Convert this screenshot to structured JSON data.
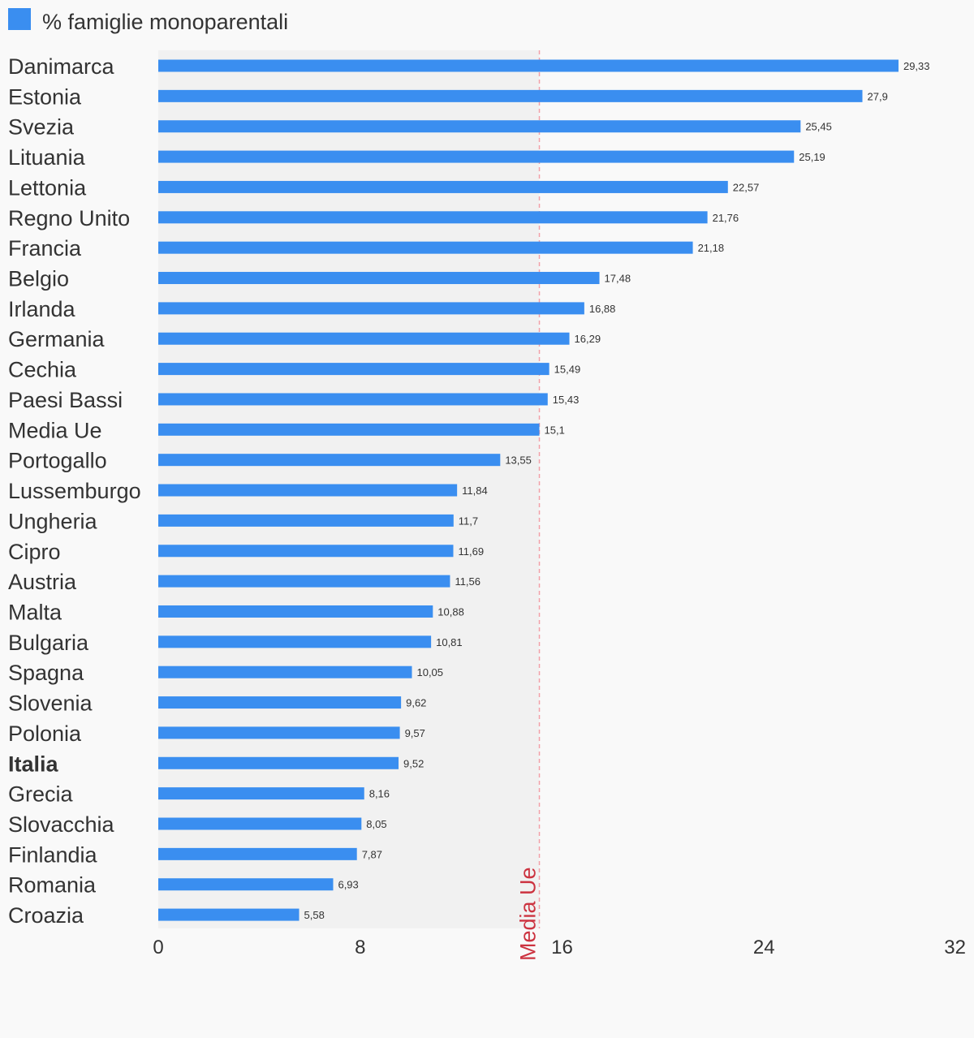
{
  "chart_data": {
    "type": "bar",
    "orientation": "horizontal",
    "legend": {
      "label": "% famiglie monoparentali",
      "placement": "top-left"
    },
    "categories": [
      "Danimarca",
      "Estonia",
      "Svezia",
      "Lituania",
      "Lettonia",
      "Regno Unito",
      "Francia",
      "Belgio",
      "Irlanda",
      "Germania",
      "Cechia",
      "Paesi Bassi",
      "Media Ue",
      "Portogallo",
      "Lussemburgo",
      "Ungheria",
      "Cipro",
      "Austria",
      "Malta",
      "Bulgaria",
      "Spagna",
      "Slovenia",
      "Polonia",
      "Italia",
      "Grecia",
      "Slovacchia",
      "Finlandia",
      "Romania",
      "Croazia"
    ],
    "series": [
      {
        "name": "% famiglie monoparentali",
        "values": [
          29.33,
          27.9,
          25.45,
          25.19,
          22.57,
          21.76,
          21.18,
          17.48,
          16.88,
          16.29,
          15.49,
          15.43,
          15.1,
          13.55,
          11.84,
          11.7,
          11.69,
          11.56,
          10.88,
          10.81,
          10.05,
          9.62,
          9.57,
          9.52,
          8.16,
          8.05,
          7.87,
          6.93,
          5.58
        ],
        "labels": [
          "29,33",
          "27,9",
          "25,45",
          "25,19",
          "22,57",
          "21,76",
          "21,18",
          "17,48",
          "16,88",
          "16,29",
          "15,49",
          "15,43",
          "15,1",
          "13,55",
          "11,84",
          "11,7",
          "11,69",
          "11,56",
          "10,88",
          "10,81",
          "10,05",
          "9,62",
          "9,57",
          "9,52",
          "8,16",
          "8,05",
          "7,87",
          "6,93",
          "5,58"
        ]
      }
    ],
    "highlighted_category": "Italia",
    "reference_line": {
      "label": "Media Ue",
      "value": 15.1,
      "color": "#cc3340"
    },
    "xlim": [
      0,
      32
    ],
    "xticks": [
      0,
      8,
      16,
      24,
      32
    ],
    "xtick_labels": [
      "0",
      "8",
      "16",
      "24",
      "32"
    ],
    "grid": false,
    "colors": {
      "bar": "#3a8ef0",
      "reference_band": "#f1f1f1",
      "reference_line": "#f2a0a8",
      "text": "#333333",
      "background": "#f9f9f9"
    }
  }
}
